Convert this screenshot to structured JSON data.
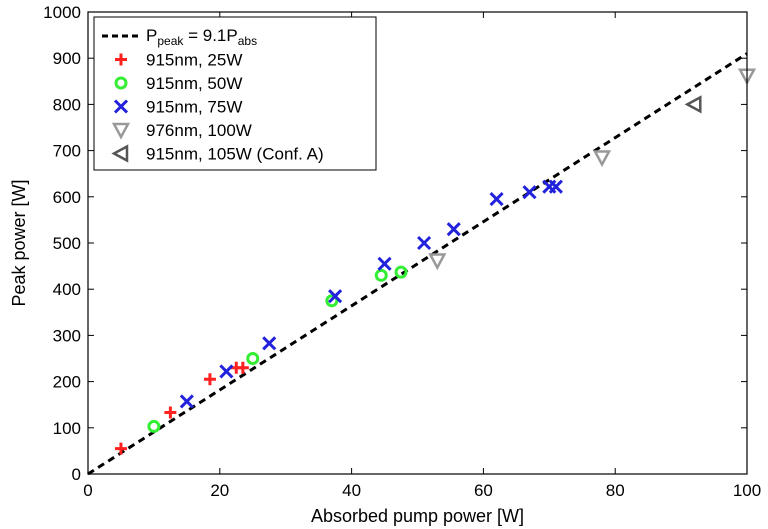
{
  "chart_data": {
    "type": "scatter",
    "xlabel": "Absorbed pump power [W]",
    "ylabel": "Peak power [W]",
    "xlim": [
      0,
      100
    ],
    "ylim": [
      0,
      1000
    ],
    "xticks": [
      0,
      20,
      40,
      60,
      80,
      100
    ],
    "yticks": [
      0,
      100,
      200,
      300,
      400,
      500,
      600,
      700,
      800,
      900,
      1000
    ],
    "grid": false,
    "legend_position": "top-left",
    "fit_line": {
      "label_base": "P",
      "label_sub1": "peak",
      "label_mid": " = 9.1P",
      "label_sub2": "abs",
      "slope": 9.1,
      "style": "dashed",
      "color": "#000000"
    },
    "series": [
      {
        "name": "915nm, 25W",
        "marker": "plus",
        "color": "#ff2020",
        "x": [
          5,
          12.5,
          18.5,
          22.5,
          23.5
        ],
        "y": [
          55,
          133,
          205,
          230,
          230
        ]
      },
      {
        "name": "915nm, 50W",
        "marker": "circle",
        "color": "#33ee33",
        "x": [
          10,
          25,
          37,
          44.5,
          47.5
        ],
        "y": [
          103,
          250,
          375,
          430,
          437
        ]
      },
      {
        "name": "915nm, 75W",
        "marker": "x",
        "color": "#2222dd",
        "x": [
          15,
          21,
          27.5,
          37.5,
          45,
          51,
          55.5,
          62,
          67,
          70,
          71
        ],
        "y": [
          157,
          222,
          283,
          385,
          455,
          500,
          530,
          595,
          610,
          622,
          622
        ]
      },
      {
        "name": "976nm, 100W",
        "marker": "triangle-down",
        "color": "#999999",
        "x": [
          53,
          78,
          100
        ],
        "y": [
          462,
          685,
          862
        ]
      },
      {
        "name": "915nm, 105W (Conf. A)",
        "marker": "triangle-left",
        "color": "#555555",
        "x": [
          92
        ],
        "y": [
          800
        ]
      }
    ]
  }
}
